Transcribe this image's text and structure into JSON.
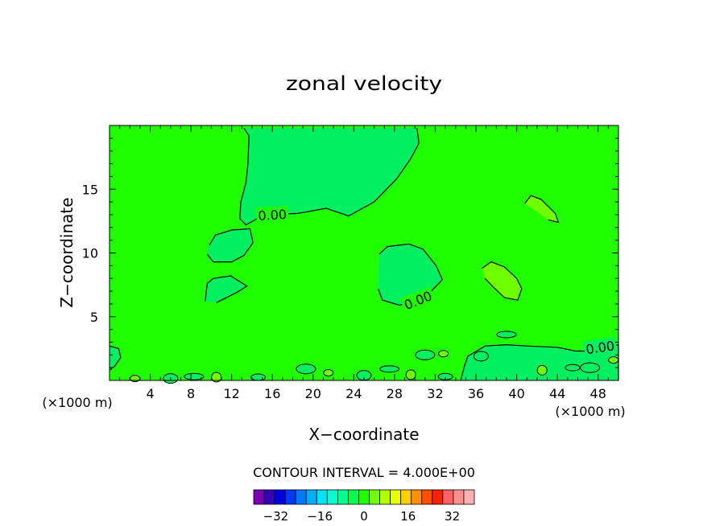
{
  "chart_data": {
    "type": "contour",
    "title": "zonal velocity",
    "xlabel": "X−coordinate",
    "ylabel": "Z−coordinate",
    "xunit": "(×1000 m)",
    "xlim": [
      0,
      50
    ],
    "ylim": [
      0,
      20
    ],
    "xticks": [
      4,
      8,
      12,
      16,
      20,
      24,
      28,
      32,
      36,
      40,
      44,
      48
    ],
    "yticks": [
      5,
      10,
      15
    ],
    "contour_labels": [
      "0.00",
      "0.00",
      "0.00"
    ],
    "contour_interval_text": "CONTOUR INTERVAL = 4.000E+00",
    "colorbar": {
      "labels": [
        "−32",
        "−16",
        "0",
        "16",
        "32"
      ],
      "label_values": [
        -32,
        -16,
        0,
        16,
        32
      ],
      "min": -40,
      "max": 40,
      "colors": [
        "#7a00b0",
        "#3a00b8",
        "#0000e0",
        "#0038ff",
        "#0078ff",
        "#00b0ff",
        "#00e0ff",
        "#00ffd0",
        "#00ff90",
        "#00ff50",
        "#20ff00",
        "#70ff00",
        "#b0ff00",
        "#e8ff00",
        "#ffd000",
        "#ff9000",
        "#ff5000",
        "#ff2000",
        "#ff6060",
        "#ff9090",
        "#ffb0b0"
      ]
    },
    "regions": [
      {
        "name": "upper-negative",
        "value": -2,
        "points": [
          [
            13.2,
            19.8
          ],
          [
            13.7,
            19.2
          ],
          [
            13.6,
            17.0
          ],
          [
            13.4,
            15.5
          ],
          [
            12.9,
            14.0
          ],
          [
            12.8,
            12.7
          ],
          [
            13.4,
            12.2
          ],
          [
            15.2,
            13.0
          ],
          [
            18.5,
            13.1
          ],
          [
            21.3,
            13.5
          ],
          [
            23.5,
            12.9
          ],
          [
            26.0,
            14.0
          ],
          [
            28.2,
            15.8
          ],
          [
            29.6,
            17.4
          ],
          [
            30.4,
            18.6
          ],
          [
            30.2,
            19.8
          ]
        ]
      },
      {
        "name": "left-blob-upper",
        "value": -2,
        "points": [
          [
            9.8,
            10.6
          ],
          [
            10.4,
            11.4
          ],
          [
            12.0,
            11.8
          ],
          [
            13.8,
            11.9
          ],
          [
            14.1,
            10.8
          ],
          [
            13.2,
            9.8
          ],
          [
            12.0,
            9.3
          ],
          [
            10.2,
            9.3
          ],
          [
            9.6,
            9.9
          ]
        ]
      },
      {
        "name": "left-blob-lower",
        "value": -2,
        "points": [
          [
            9.4,
            6.2
          ],
          [
            9.6,
            7.6
          ],
          [
            10.2,
            8.0
          ],
          [
            11.9,
            8.2
          ],
          [
            13.5,
            7.4
          ],
          [
            12.5,
            6.9
          ],
          [
            10.5,
            6.1
          ]
        ]
      },
      {
        "name": "center-blob",
        "value": -2,
        "points": [
          [
            26.5,
            9.9
          ],
          [
            27.3,
            10.5
          ],
          [
            29.4,
            10.7
          ],
          [
            30.8,
            10.3
          ],
          [
            32.1,
            9.0
          ],
          [
            32.7,
            7.9
          ],
          [
            31.6,
            7.0
          ],
          [
            30.2,
            6.3
          ],
          [
            28.5,
            5.9
          ],
          [
            26.8,
            6.3
          ],
          [
            26.4,
            7.2
          ]
        ]
      },
      {
        "name": "right-bottom-negative",
        "value": -2,
        "points": [
          [
            34.5,
            0.0
          ],
          [
            34.9,
            1.2
          ],
          [
            35.2,
            1.9
          ],
          [
            36.9,
            2.7
          ],
          [
            39.0,
            2.8
          ],
          [
            41.0,
            2.7
          ],
          [
            44.0,
            2.6
          ],
          [
            45.8,
            2.3
          ],
          [
            47.0,
            2.3
          ],
          [
            48.9,
            2.6
          ],
          [
            50.0,
            2.8
          ],
          [
            50.0,
            0.0
          ]
        ]
      },
      {
        "name": "right-positive-upper",
        "value": 2,
        "points": [
          [
            40.8,
            13.9
          ],
          [
            41.4,
            14.5
          ],
          [
            42.4,
            14.2
          ],
          [
            43.8,
            13.1
          ],
          [
            44.1,
            12.4
          ],
          [
            43.1,
            12.6
          ]
        ]
      },
      {
        "name": "right-positive-lower",
        "value": 2,
        "points": [
          [
            36.6,
            8.8
          ],
          [
            37.5,
            9.3
          ],
          [
            38.8,
            8.9
          ],
          [
            40.0,
            8.0
          ],
          [
            40.5,
            7.2
          ],
          [
            40.1,
            6.3
          ],
          [
            38.8,
            6.5
          ],
          [
            37.6,
            7.4
          ],
          [
            36.9,
            8.0
          ]
        ]
      },
      {
        "name": "left-edge-negative",
        "value": -2,
        "points": [
          [
            0.0,
            2.7
          ],
          [
            0.9,
            2.5
          ],
          [
            1.1,
            1.8
          ],
          [
            0.5,
            1.1
          ],
          [
            0.0,
            0.8
          ]
        ]
      }
    ]
  }
}
